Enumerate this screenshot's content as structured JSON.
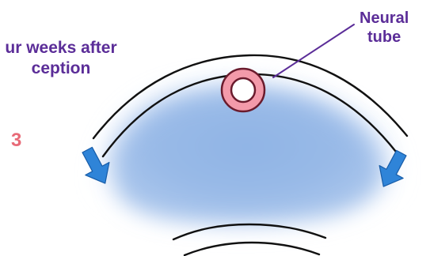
{
  "caption": {
    "line1": "ur weeks after",
    "line2": "ception"
  },
  "step_number": "3",
  "labels": {
    "neural_tube": {
      "line1": "Neural",
      "line2": "tube"
    }
  },
  "colors": {
    "caption_text": "#5b2d98",
    "label_text": "#5b2d98",
    "step_number": "#e86a77",
    "neural_tube_fill": "#f39aaa",
    "neural_tube_outline": "#6a1b2d",
    "tissue": "#8fb3e5",
    "arrows": "#2f84d8",
    "arc_lines": "#111111"
  },
  "icons": {
    "left_arrow": "downward-arrow-icon",
    "right_arrow": "downward-arrow-icon"
  }
}
